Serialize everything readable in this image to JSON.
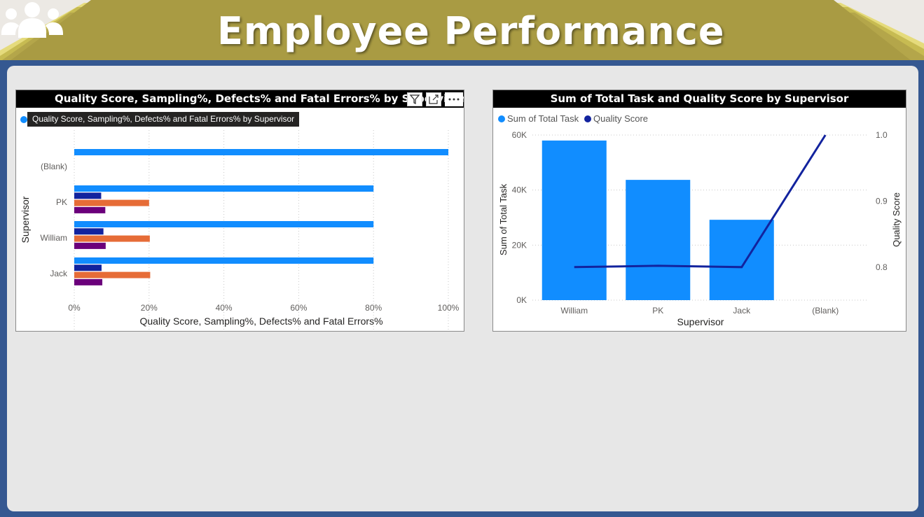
{
  "page": {
    "title": "Employee Performance",
    "title_icon": "people-group-icon",
    "colors": {
      "header_gold": "#a99b43",
      "header_gold_light": "#d8cf66",
      "frame_blue": "#355891",
      "canvas_gray": "#e7e7e7"
    }
  },
  "visual1": {
    "title": "Quality Score, Sampling%, Defects% and Fatal Errors% by Supervisor",
    "tooltip": "Quality Score, Sampling%, Defects% and Fatal Errors% by Supervisor",
    "toolbar": [
      "filter-icon",
      "focus-mode-icon",
      "more-options-icon"
    ]
  },
  "visual2": {
    "title": "Sum of Total Task and Quality Score by Supervisor",
    "legend": [
      {
        "name": "Sum of Total Task",
        "color": "#118dff"
      },
      {
        "name": "Quality Score",
        "color": "#12239e"
      }
    ]
  },
  "chart_data": [
    {
      "type": "bar",
      "orientation": "horizontal",
      "title": "Quality Score, Sampling%, Defects% and Fatal Errors% by Supervisor",
      "xlabel": "Quality Score, Sampling%, Defects% and Fatal Errors%",
      "ylabel": "Supervisor",
      "categories": [
        "(Blank)",
        "PK",
        "William",
        "Jack"
      ],
      "x_ticks": [
        "0%",
        "20%",
        "40%",
        "60%",
        "80%",
        "100%"
      ],
      "xlim": [
        0,
        100
      ],
      "grid": true,
      "series": [
        {
          "name": "Quality Score",
          "color": "#118dff",
          "values": [
            100,
            80,
            80,
            80
          ]
        },
        {
          "name": "Sampling%",
          "color": "#12239e",
          "values": [
            0,
            7.2,
            7.8,
            7.3
          ]
        },
        {
          "name": "Defects%",
          "color": "#e66c37",
          "values": [
            0,
            20,
            20.2,
            20.3
          ]
        },
        {
          "name": "Fatal Errors%",
          "color": "#6b007b",
          "values": [
            0,
            8.3,
            8.4,
            7.5
          ]
        }
      ]
    },
    {
      "type": "bar",
      "combo": "bar-line",
      "title": "Sum of Total Task and Quality Score by Supervisor",
      "xlabel": "Supervisor",
      "ylabel": "Sum of Total Task",
      "y2label": "Quality Score",
      "categories": [
        "William",
        "PK",
        "Jack",
        "(Blank)"
      ],
      "ylim": [
        0,
        60000
      ],
      "y_ticks": [
        "0K",
        "20K",
        "40K",
        "60K"
      ],
      "y2lim": [
        0.75,
        1.0
      ],
      "y2_ticks": [
        "0.8",
        "0.9",
        "1.0"
      ],
      "legend_position": "top-left",
      "grid": true,
      "series": [
        {
          "name": "Sum of Total Task",
          "type": "bar",
          "color": "#118dff",
          "values": [
            58000,
            43700,
            29200,
            0
          ]
        },
        {
          "name": "Quality Score",
          "type": "line",
          "color": "#12239e",
          "values": [
            0.8,
            0.802,
            0.8,
            1.0
          ]
        }
      ]
    }
  ]
}
